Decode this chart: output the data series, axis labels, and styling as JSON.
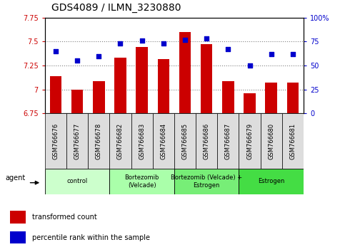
{
  "title": "GDS4089 / ILMN_3230880",
  "samples": [
    "GSM766676",
    "GSM766677",
    "GSM766678",
    "GSM766682",
    "GSM766683",
    "GSM766684",
    "GSM766685",
    "GSM766686",
    "GSM766687",
    "GSM766679",
    "GSM766680",
    "GSM766681"
  ],
  "bar_values": [
    7.14,
    7.0,
    7.09,
    7.33,
    7.44,
    7.32,
    7.6,
    7.47,
    7.09,
    6.96,
    7.07,
    7.07
  ],
  "scatter_values": [
    65,
    55,
    60,
    73,
    76,
    73,
    77,
    78,
    67,
    50,
    62,
    62
  ],
  "bar_color": "#cc0000",
  "scatter_color": "#0000cc",
  "ylim_left": [
    6.75,
    7.75
  ],
  "ylim_right": [
    0,
    100
  ],
  "yticks_left": [
    6.75,
    7.0,
    7.25,
    7.5,
    7.75
  ],
  "ytick_labels_left": [
    "6.75",
    "7",
    "7.25",
    "7.5",
    "7.75"
  ],
  "yticks_right": [
    0,
    25,
    50,
    75,
    100
  ],
  "ytick_labels_right": [
    "0",
    "25",
    "50",
    "75",
    "100%"
  ],
  "groups": [
    {
      "label": "control",
      "start": 0,
      "end": 3,
      "color": "#ccffcc"
    },
    {
      "label": "Bortezomib\n(Velcade)",
      "start": 3,
      "end": 6,
      "color": "#aaffaa"
    },
    {
      "label": "Bortezomib (Velcade) +\nEstrogen",
      "start": 6,
      "end": 9,
      "color": "#77ee77"
    },
    {
      "label": "Estrogen",
      "start": 9,
      "end": 12,
      "color": "#44dd44"
    }
  ],
  "agent_label": "agent",
  "legend_bar_label": "transformed count",
  "legend_scatter_label": "percentile rank within the sample",
  "bar_baseline": 6.75,
  "grid_dotted_values": [
    7.0,
    7.25,
    7.5
  ],
  "tick_label_fontsize": 7,
  "title_fontsize": 10,
  "sample_cell_color": "#dddddd"
}
